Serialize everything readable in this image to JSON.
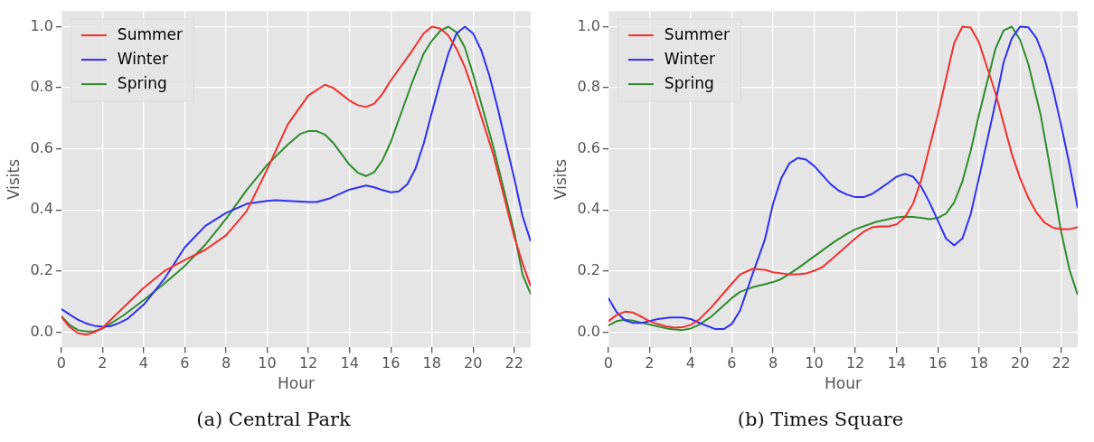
{
  "chart_data": [
    {
      "type": "line",
      "title": "(a) Central Park",
      "xlabel": "Hour",
      "ylabel": "Visits",
      "xlim": [
        0,
        22.8
      ],
      "ylim": [
        -0.05,
        1.05
      ],
      "xticks": [
        0,
        2,
        4,
        6,
        8,
        10,
        12,
        14,
        16,
        18,
        20,
        22
      ],
      "yticks": [
        {
          "value": 0,
          "label": "0.0"
        },
        {
          "value": 0.2,
          "label": "0.2"
        },
        {
          "value": 0.4,
          "label": "0.4"
        },
        {
          "value": 0.6,
          "label": "0.6"
        },
        {
          "value": 0.8,
          "label": "0.8"
        },
        {
          "value": 1,
          "label": "1.0"
        }
      ],
      "grid": true,
      "legend": "top left",
      "series": [
        {
          "name": "Summer",
          "color": "#f03030",
          "x": [
            0,
            0.4,
            0.8,
            1.2,
            1.6,
            2,
            3,
            4,
            5,
            6,
            7,
            8,
            9,
            10,
            11,
            12,
            12.8,
            13.2,
            14,
            14.4,
            14.8,
            15.2,
            15.6,
            16,
            17,
            17.6,
            18,
            18.4,
            18.8,
            19.2,
            19.6,
            20,
            21,
            22,
            22.4,
            22.8
          ],
          "values": [
            0.051,
            0.017,
            -0.003,
            -0.008,
            0,
            0.014,
            0.08,
            0.145,
            0.2,
            0.236,
            0.27,
            0.317,
            0.396,
            0.533,
            0.68,
            0.775,
            0.81,
            0.8,
            0.758,
            0.743,
            0.737,
            0.748,
            0.78,
            0.824,
            0.917,
            0.978,
            1.0,
            0.994,
            0.971,
            0.927,
            0.868,
            0.79,
            0.578,
            0.312,
            0.226,
            0.15
          ]
        },
        {
          "name": "Winter",
          "color": "#3030f0",
          "x": [
            0,
            0.4,
            0.8,
            1.2,
            1.6,
            2,
            2.4,
            2.8,
            3.2,
            4,
            5,
            6,
            7,
            8,
            9,
            10,
            10.4,
            11,
            12,
            12.4,
            13,
            14,
            14.8,
            15.2,
            15.6,
            16,
            16.4,
            16.8,
            17.2,
            17.6,
            18,
            18.4,
            18.8,
            19.2,
            19.6,
            20,
            20.4,
            20.8,
            21.2,
            21.6,
            22,
            22.4,
            22.8
          ],
          "values": [
            0.076,
            0.058,
            0.041,
            0.029,
            0.021,
            0.018,
            0.02,
            0.03,
            0.043,
            0.09,
            0.174,
            0.278,
            0.348,
            0.39,
            0.42,
            0.43,
            0.432,
            0.43,
            0.426,
            0.426,
            0.437,
            0.467,
            0.48,
            0.474,
            0.465,
            0.458,
            0.461,
            0.484,
            0.535,
            0.617,
            0.72,
            0.819,
            0.912,
            0.978,
            1.0,
            0.978,
            0.922,
            0.838,
            0.732,
            0.617,
            0.504,
            0.381,
            0.297
          ]
        },
        {
          "name": "Spring",
          "color": "#2e8b2e",
          "x": [
            0,
            0.4,
            0.8,
            1.2,
            1.6,
            2,
            3,
            4,
            5,
            6,
            7,
            8,
            9,
            10,
            11,
            11.6,
            12,
            12.4,
            12.8,
            13.2,
            14,
            14.4,
            14.8,
            15.2,
            15.6,
            16,
            17,
            17.6,
            18,
            18.4,
            18.8,
            19.2,
            19.6,
            20,
            21,
            22,
            22.4,
            22.8
          ],
          "values": [
            0.053,
            0.024,
            0.007,
            0.002,
            0.003,
            0.012,
            0.054,
            0.105,
            0.159,
            0.217,
            0.287,
            0.371,
            0.465,
            0.548,
            0.614,
            0.649,
            0.658,
            0.658,
            0.647,
            0.62,
            0.548,
            0.522,
            0.511,
            0.524,
            0.563,
            0.622,
            0.81,
            0.912,
            0.954,
            0.986,
            1.0,
            0.981,
            0.932,
            0.844,
            0.603,
            0.327,
            0.189,
            0.125
          ]
        }
      ]
    },
    {
      "type": "line",
      "title": "(b) Times Square",
      "xlabel": "Hour",
      "ylabel": "Visits",
      "xlim": [
        0,
        22.8
      ],
      "ylim": [
        -0.05,
        1.05
      ],
      "xticks": [
        0,
        2,
        4,
        6,
        8,
        10,
        12,
        14,
        16,
        18,
        20,
        22
      ],
      "yticks": [
        {
          "value": 0,
          "label": "0.0"
        },
        {
          "value": 0.2,
          "label": "0.2"
        },
        {
          "value": 0.4,
          "label": "0.4"
        },
        {
          "value": 0.6,
          "label": "0.6"
        },
        {
          "value": 0.8,
          "label": "0.8"
        },
        {
          "value": 1,
          "label": "1.0"
        }
      ],
      "grid": true,
      "legend": "top left",
      "series": [
        {
          "name": "Summer",
          "color": "#f03030",
          "x": [
            0,
            0.4,
            0.8,
            1.2,
            1.6,
            2,
            2.4,
            2.8,
            3.2,
            3.6,
            4,
            4.4,
            5,
            6,
            6.4,
            7,
            7.6,
            8,
            8.8,
            9.2,
            9.6,
            10,
            10.4,
            11,
            12,
            12.4,
            12.8,
            13.2,
            13.6,
            14,
            14.4,
            14.8,
            15.2,
            16,
            16.8,
            17.2,
            17.6,
            18,
            18.8,
            19.6,
            20,
            20.4,
            20.8,
            21.2,
            21.6,
            22,
            22.4,
            22.8
          ],
          "values": [
            0.036,
            0.056,
            0.067,
            0.064,
            0.051,
            0.036,
            0.027,
            0.019,
            0.015,
            0.016,
            0.024,
            0.041,
            0.081,
            0.159,
            0.189,
            0.207,
            0.204,
            0.196,
            0.189,
            0.189,
            0.192,
            0.201,
            0.213,
            0.248,
            0.307,
            0.329,
            0.343,
            0.346,
            0.346,
            0.353,
            0.376,
            0.42,
            0.499,
            0.711,
            0.947,
            1.0,
            0.997,
            0.949,
            0.784,
            0.583,
            0.504,
            0.44,
            0.391,
            0.358,
            0.342,
            0.337,
            0.337,
            0.344
          ]
        },
        {
          "name": "Winter",
          "color": "#3030f0",
          "x": [
            0,
            0.4,
            0.8,
            1.2,
            1.6,
            2,
            2.4,
            3,
            3.6,
            4,
            4.4,
            5.2,
            5.6,
            6,
            6.4,
            7,
            7.6,
            8,
            8.4,
            8.8,
            9.2,
            9.6,
            10,
            10.8,
            11.2,
            11.6,
            12,
            12.4,
            12.8,
            13.2,
            13.6,
            14,
            14.4,
            14.8,
            15.2,
            15.6,
            16,
            16.4,
            16.8,
            17.2,
            17.6,
            18,
            18.8,
            19.2,
            19.6,
            20,
            20.4,
            20.8,
            21.2,
            21.6,
            22,
            22.4,
            22.8
          ],
          "values": [
            0.112,
            0.066,
            0.039,
            0.03,
            0.03,
            0.036,
            0.043,
            0.048,
            0.048,
            0.043,
            0.031,
            0.01,
            0.01,
            0.027,
            0.071,
            0.189,
            0.302,
            0.42,
            0.504,
            0.553,
            0.57,
            0.565,
            0.544,
            0.484,
            0.463,
            0.45,
            0.442,
            0.442,
            0.452,
            0.47,
            0.489,
            0.509,
            0.518,
            0.509,
            0.476,
            0.425,
            0.366,
            0.307,
            0.284,
            0.307,
            0.386,
            0.504,
            0.75,
            0.883,
            0.962,
            1.0,
            0.998,
            0.962,
            0.893,
            0.794,
            0.676,
            0.548,
            0.406
          ]
        },
        {
          "name": "Spring",
          "color": "#2e8b2e",
          "x": [
            0,
            0.4,
            0.8,
            1.2,
            1.6,
            2,
            2.4,
            3,
            3.6,
            4,
            4.4,
            5,
            6,
            6.4,
            7,
            7.6,
            8,
            8.4,
            8.8,
            9.2,
            10,
            11,
            11.6,
            12,
            13,
            14,
            14.4,
            14.8,
            15.2,
            15.6,
            16,
            16.4,
            16.8,
            17.2,
            17.6,
            18,
            18.8,
            19.2,
            19.6,
            20,
            20.4,
            21,
            21.6,
            22,
            22.4,
            22.8
          ],
          "values": [
            0.022,
            0.036,
            0.041,
            0.038,
            0.031,
            0.025,
            0.019,
            0.01,
            0.007,
            0.012,
            0.024,
            0.051,
            0.112,
            0.132,
            0.147,
            0.157,
            0.164,
            0.174,
            0.191,
            0.209,
            0.248,
            0.297,
            0.322,
            0.337,
            0.361,
            0.376,
            0.378,
            0.377,
            0.374,
            0.37,
            0.374,
            0.388,
            0.425,
            0.494,
            0.593,
            0.711,
            0.927,
            0.988,
            1.0,
            0.957,
            0.878,
            0.711,
            0.484,
            0.327,
            0.204,
            0.122
          ]
        }
      ]
    }
  ]
}
